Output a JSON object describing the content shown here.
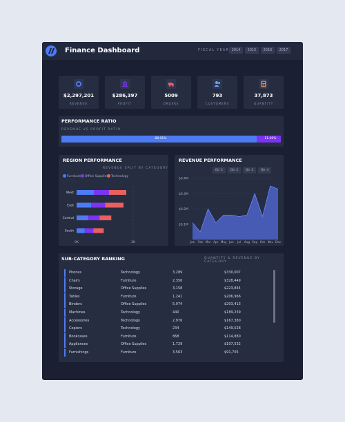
{
  "app": {
    "title": "Finance Dashboard"
  },
  "fiscal": {
    "label": "FISCAL YEAR",
    "years": [
      "2014",
      "2015",
      "2016",
      "2017"
    ]
  },
  "kpis": [
    {
      "value": "$2,297,201",
      "label": "REVENUE",
      "icon": "coin-icon",
      "color": "#4d7bf3"
    },
    {
      "value": "$286,397",
      "label": "PROFIT",
      "icon": "bank-icon",
      "color": "#7b35f2"
    },
    {
      "value": "5009",
      "label": "ORDERS",
      "icon": "truck-icon",
      "color": "#e8605f"
    },
    {
      "value": "793",
      "label": "CUSTOMERS",
      "icon": "users-icon",
      "color": "#6fa5f2"
    },
    {
      "value": "37,873",
      "label": "QUANTITY",
      "icon": "calculator-icon",
      "color": "#f08a55"
    }
  ],
  "ratio": {
    "title": "PERFORMANCE RATIO",
    "subtitle": "REVENUE VS PROFIT RATIO",
    "revenue_pct": 88.91,
    "profit_pct": 11.09,
    "revenue_label": "88.91%",
    "profit_label": "11.09%"
  },
  "region": {
    "title": "REGION PERFORMANCE",
    "subtitle": "REVENUE SPLIT BY CATEGORY",
    "legend": [
      "Furniture",
      "Office Supplies",
      "Technology"
    ]
  },
  "revenue_panel": {
    "title": "REVENUE PERFORMANCE",
    "tabs": [
      "Qtr 1",
      "Qtr 2",
      "Qtr 3",
      "Qtr 4"
    ]
  },
  "ranking": {
    "title": "SUB-CATEGORY RANKING",
    "subtitle": "QUANTITY & REVENUE BY CATEGORY",
    "rows": [
      {
        "name": "Phones",
        "category": "Technology",
        "qty": "3,289",
        "revenue": "$330,007"
      },
      {
        "name": "Chairs",
        "category": "Furniture",
        "qty": "2,356",
        "revenue": "$328,449"
      },
      {
        "name": "Storage",
        "category": "Office Supplies",
        "qty": "3,158",
        "revenue": "$223,844"
      },
      {
        "name": "Tables",
        "category": "Furniture",
        "qty": "1,241",
        "revenue": "$206,966"
      },
      {
        "name": "Binders",
        "category": "Office Supplies",
        "qty": "5,974",
        "revenue": "$203,413"
      },
      {
        "name": "Machines",
        "category": "Technology",
        "qty": "440",
        "revenue": "$189,239"
      },
      {
        "name": "Accessories",
        "category": "Technology",
        "qty": "2,976",
        "revenue": "$167,380"
      },
      {
        "name": "Copiers",
        "category": "Technology",
        "qty": "234",
        "revenue": "$149,528"
      },
      {
        "name": "Bookcases",
        "category": "Furniture",
        "qty": "868",
        "revenue": "$114,880"
      },
      {
        "name": "Appliances",
        "category": "Office Supplies",
        "qty": "1,729",
        "revenue": "$107,532"
      },
      {
        "name": "Furnishings",
        "category": "Furniture",
        "qty": "3,563",
        "revenue": "$91,705"
      }
    ]
  },
  "colors": {
    "furniture": "#4d7bf3",
    "office": "#7b35f2",
    "technology": "#e8605f",
    "area": "#4d63c9"
  },
  "chart_data": [
    {
      "type": "bar",
      "stacked": true,
      "orientation": "horizontal",
      "categories": [
        "West",
        "East",
        "Central",
        "South"
      ],
      "series": [
        {
          "name": "Furniture",
          "values": [
            250,
            210,
            165,
            118
          ]
        },
        {
          "name": "Office Supplies",
          "values": [
            220,
            205,
            168,
            125
          ]
        },
        {
          "name": "Technology",
          "values": [
            250,
            265,
            170,
            150
          ]
        }
      ],
      "xticks": [
        "0K",
        "2K"
      ],
      "xlim": [
        0,
        2000
      ]
    },
    {
      "type": "area",
      "x": [
        "Jan",
        "Feb",
        "Mar",
        "Apr",
        "May",
        "Jun",
        "Jul",
        "Aug",
        "Sep",
        "Oct",
        "Nov",
        "Dec"
      ],
      "values": [
        0.11,
        0.05,
        0.2,
        0.11,
        0.16,
        0.16,
        0.15,
        0.16,
        0.3,
        0.15,
        0.35,
        0.33
      ],
      "yticks": [
        "$0.1M",
        "$0.2M",
        "$0.3M",
        "$0.4M"
      ],
      "ylim": [
        0,
        0.4
      ]
    }
  ]
}
